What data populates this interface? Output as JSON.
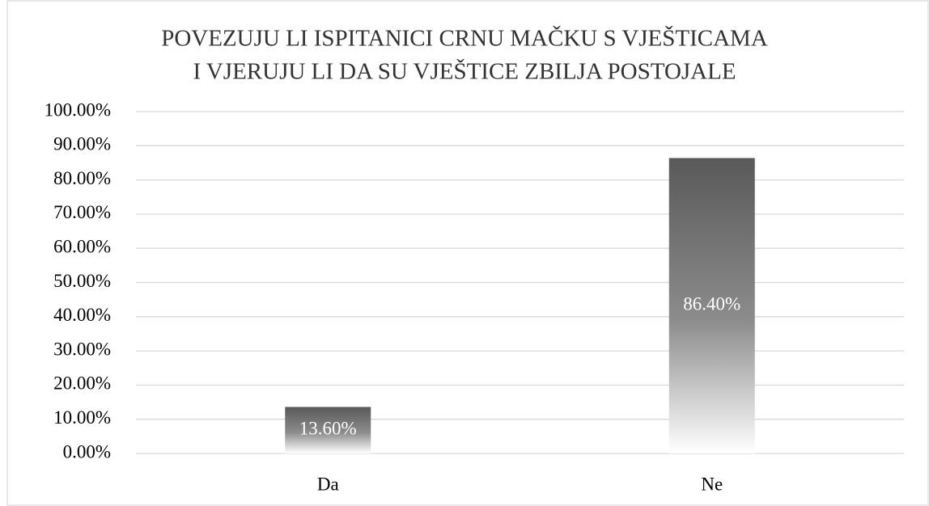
{
  "chart_data": {
    "type": "bar",
    "title": [
      "POVEZUJU LI ISPITANICI CRNU MAČKU S VJEŠTICAMA",
      "I VJERUJU LI DA SU VJEŠTICE ZBILJA POSTOJALE"
    ],
    "categories": [
      "Da",
      "Ne"
    ],
    "values": [
      13.6,
      86.4
    ],
    "value_labels": [
      "13.60%",
      "86.40%"
    ],
    "color": "#595959",
    "ylim": [
      0,
      100
    ],
    "yticks": [
      {
        "value": 0,
        "label": "0.00%"
      },
      {
        "value": 10,
        "label": "10.00%"
      },
      {
        "value": 20,
        "label": "20.00%"
      },
      {
        "value": 30,
        "label": "30.00%"
      },
      {
        "value": 40,
        "label": "40.00%"
      },
      {
        "value": 50,
        "label": "50.00%"
      },
      {
        "value": 60,
        "label": "60.00%"
      },
      {
        "value": 70,
        "label": "70.00%"
      },
      {
        "value": 80,
        "label": "80.00%"
      },
      {
        "value": 90,
        "label": "90.00%"
      },
      {
        "value": 100,
        "label": "100.00%"
      }
    ],
    "grid": true
  }
}
